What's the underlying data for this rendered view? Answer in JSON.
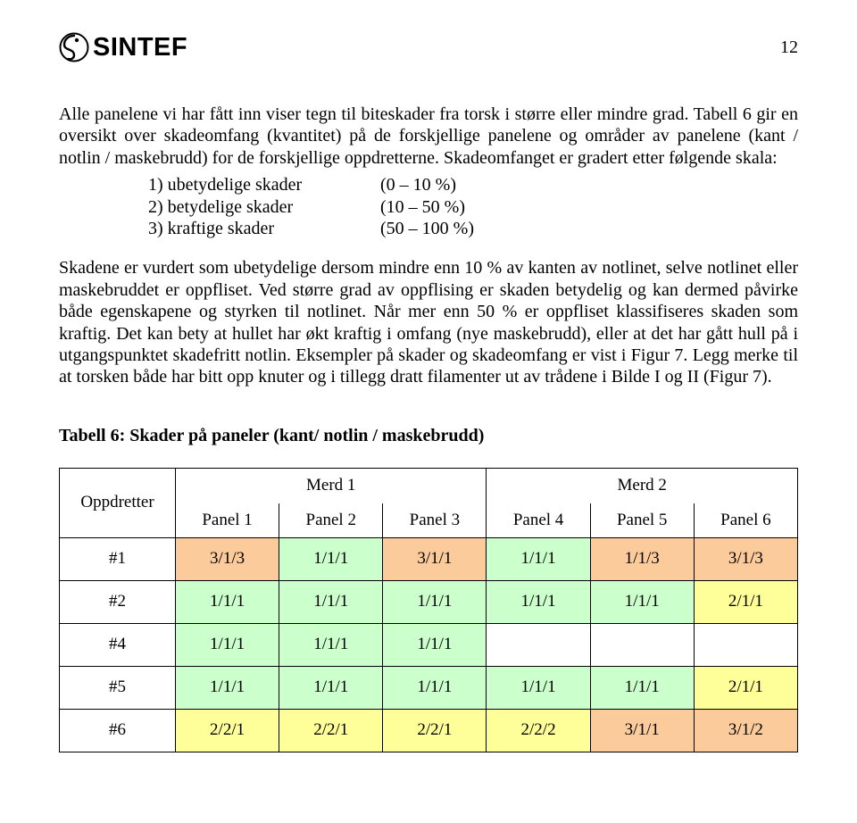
{
  "page_number": "12",
  "logo_text": "SINTEF",
  "para1": "Alle panelene vi har fått inn viser tegn til biteskader fra torsk i større eller mindre grad. Tabell 6 gir en oversikt over skadeomfang (kvantitet) på de forskjellige panelene og områder av panelene (kant / notlin / maskebrudd) for de forskjellige oppdretterne. Skadeomfanget er gradert etter følgende skala:",
  "scale": {
    "items": [
      {
        "label": "1) ubetydelige skader",
        "range": "(0 – 10 %)"
      },
      {
        "label": "2) betydelige skader",
        "range": "(10 – 50 %)"
      },
      {
        "label": "3) kraftige skader",
        "range": "(50 – 100 %)"
      }
    ]
  },
  "para2": "Skadene er vurdert som ubetydelige dersom mindre enn 10 % av kanten av notlinet, selve notlinet eller maskebruddet er oppfliset. Ved større grad av oppflising er skaden betydelig og kan dermed påvirke både egenskapene og styrken til notlinet. Når mer enn 50 % er oppfliset klassifiseres skaden som kraftig. Det kan bety at hullet har økt kraftig i omfang (nye maskebrudd), eller at det har gått hull på i utgangspunktet skadefritt notlin. Eksempler på skader og skadeomfang er vist i Figur 7. Legg merke til at torsken både har bitt opp knuter og i tillegg dratt filamenter ut av trådene i Bilde I og II (Figur 7).",
  "table": {
    "title": "Tabell 6: Skader på paneler (kant/ notlin / maskebrudd)",
    "corner_label": "Oppdretter",
    "groups": [
      "Merd 1",
      "Merd 2"
    ],
    "panels": [
      "Panel 1",
      "Panel 2",
      "Panel 3",
      "Panel 4",
      "Panel 5",
      "Panel 6"
    ],
    "row_labels": [
      "#1",
      "#2",
      "#4",
      "#5",
      "#6"
    ],
    "colors": {
      "orange": "#fbcb9c",
      "green": "#cbffcb",
      "yellow": "#ffff9a"
    },
    "rows": [
      [
        {
          "v": "3/1/3",
          "c": "orange"
        },
        {
          "v": "1/1/1",
          "c": "green"
        },
        {
          "v": "3/1/1",
          "c": "orange"
        },
        {
          "v": "1/1/1",
          "c": "green"
        },
        {
          "v": "1/1/3",
          "c": "orange"
        },
        {
          "v": "3/1/3",
          "c": "orange"
        }
      ],
      [
        {
          "v": "1/1/1",
          "c": "green"
        },
        {
          "v": "1/1/1",
          "c": "green"
        },
        {
          "v": "1/1/1",
          "c": "green"
        },
        {
          "v": "1/1/1",
          "c": "green"
        },
        {
          "v": "1/1/1",
          "c": "green"
        },
        {
          "v": "2/1/1",
          "c": "yellow"
        }
      ],
      [
        {
          "v": "1/1/1",
          "c": "green"
        },
        {
          "v": "1/1/1",
          "c": "green"
        },
        {
          "v": "1/1/1",
          "c": "green"
        },
        {
          "v": "",
          "c": ""
        },
        {
          "v": "",
          "c": ""
        },
        {
          "v": "",
          "c": ""
        }
      ],
      [
        {
          "v": "1/1/1",
          "c": "green"
        },
        {
          "v": "1/1/1",
          "c": "green"
        },
        {
          "v": "1/1/1",
          "c": "green"
        },
        {
          "v": "1/1/1",
          "c": "green"
        },
        {
          "v": "1/1/1",
          "c": "green"
        },
        {
          "v": "2/1/1",
          "c": "yellow"
        }
      ],
      [
        {
          "v": "2/2/1",
          "c": "yellow"
        },
        {
          "v": "2/2/1",
          "c": "yellow"
        },
        {
          "v": "2/2/1",
          "c": "yellow"
        },
        {
          "v": "2/2/2",
          "c": "yellow"
        },
        {
          "v": "3/1/1",
          "c": "orange"
        },
        {
          "v": "3/1/2",
          "c": "orange"
        }
      ]
    ]
  }
}
